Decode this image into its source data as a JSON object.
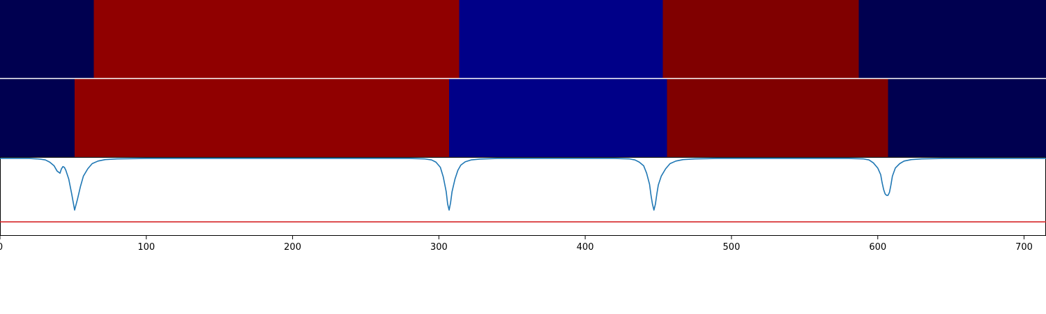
{
  "chart_data": [
    {
      "type": "heatmap",
      "xlim": [
        0,
        715
      ],
      "segments": [
        {
          "start": 0,
          "end": 64,
          "color": "#000050"
        },
        {
          "start": 64,
          "end": 314,
          "color": "#900000"
        },
        {
          "start": 314,
          "end": 453,
          "color": "#000088"
        },
        {
          "start": 453,
          "end": 587,
          "color": "#800000"
        },
        {
          "start": 587,
          "end": 715,
          "color": "#000050"
        }
      ]
    },
    {
      "type": "heatmap",
      "xlim": [
        0,
        715
      ],
      "segments": [
        {
          "start": 0,
          "end": 51,
          "color": "#000050"
        },
        {
          "start": 51,
          "end": 307,
          "color": "#900000"
        },
        {
          "start": 307,
          "end": 456,
          "color": "#000088"
        },
        {
          "start": 456,
          "end": 607,
          "color": "#800000"
        },
        {
          "start": 607,
          "end": 715,
          "color": "#000050"
        }
      ]
    },
    {
      "type": "line",
      "xlim": [
        0,
        715
      ],
      "ylim": [
        -1.05,
        0.02
      ],
      "xticks": [
        0,
        100,
        200,
        300,
        400,
        500,
        600,
        700
      ],
      "xtick_labels": [
        "0",
        "100",
        "200",
        "300",
        "400",
        "500",
        "600",
        "700"
      ],
      "series": [
        {
          "color": "#1f77b4",
          "x": [
            0,
            20,
            25,
            28,
            31,
            34,
            37,
            39,
            41,
            42,
            43,
            44,
            45,
            47,
            49,
            51,
            53,
            55,
            57,
            60,
            63,
            67,
            72,
            80,
            100,
            280,
            290,
            295,
            298,
            301,
            303,
            305,
            306,
            307,
            308,
            309,
            311,
            313,
            315,
            318,
            322,
            328,
            340,
            420,
            430,
            434,
            437,
            440,
            442,
            444,
            445,
            446,
            447,
            448,
            449,
            450,
            452,
            455,
            458,
            462,
            467,
            475,
            490,
            580,
            590,
            594,
            597,
            600,
            602,
            603,
            604,
            605,
            606,
            607,
            608,
            609,
            610,
            612,
            615,
            618,
            623,
            630,
            645,
            715
          ],
          "y": [
            0,
            0,
            -0.005,
            -0.01,
            -0.02,
            -0.05,
            -0.1,
            -0.17,
            -0.2,
            -0.14,
            -0.11,
            -0.12,
            -0.16,
            -0.28,
            -0.48,
            -0.7,
            -0.55,
            -0.38,
            -0.24,
            -0.14,
            -0.07,
            -0.035,
            -0.015,
            -0.005,
            0,
            0,
            -0.005,
            -0.02,
            -0.05,
            -0.12,
            -0.25,
            -0.45,
            -0.62,
            -0.7,
            -0.6,
            -0.45,
            -0.28,
            -0.16,
            -0.09,
            -0.045,
            -0.02,
            -0.008,
            0,
            0,
            -0.005,
            -0.02,
            -0.05,
            -0.1,
            -0.2,
            -0.35,
            -0.5,
            -0.62,
            -0.7,
            -0.62,
            -0.48,
            -0.36,
            -0.24,
            -0.14,
            -0.07,
            -0.035,
            -0.015,
            -0.005,
            0,
            0,
            -0.005,
            -0.02,
            -0.06,
            -0.13,
            -0.22,
            -0.33,
            -0.42,
            -0.48,
            -0.5,
            -0.5,
            -0.46,
            -0.36,
            -0.24,
            -0.13,
            -0.07,
            -0.035,
            -0.015,
            -0.005,
            0,
            0
          ]
        },
        {
          "color": "#d62728",
          "x": [
            0,
            715
          ],
          "y": [
            -0.86,
            -0.86
          ]
        }
      ]
    }
  ]
}
